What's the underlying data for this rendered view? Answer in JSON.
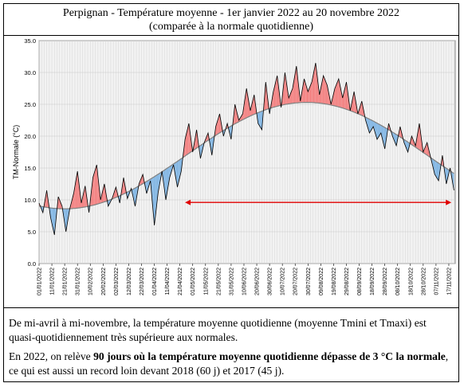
{
  "header": {
    "line1": "Perpignan - Température moyenne - 1er janvier 2022 au 20 novembre 2022",
    "line2": "(comparée à la normale quotidienne)"
  },
  "text": {
    "p1": "De mi-avril à mi-novembre, la température moyenne quotidienne (moyenne Tmini et Tmaxi) est quasi-quotidiennement très supérieure aux normales.",
    "p2_prefix": "En 2022, on relève ",
    "p2_bold": "90 jours où la température moyenne quotidienne dépasse de 3 °C la normale",
    "p2_suffix": ", ce qui est aussi un record loin devant 2018 (60 j) et 2017 (45 j)."
  },
  "chart_data": {
    "type": "area",
    "title": "",
    "xlabel": "",
    "ylabel": "TM-Normale (°C)",
    "ylim": [
      0,
      35
    ],
    "yticks": [
      "0.0",
      "5.0",
      "10.0",
      "15.0",
      "20.0",
      "25.0",
      "30.0",
      "35.0"
    ],
    "xticks": [
      "01/01/2022",
      "11/01/2022",
      "21/01/2022",
      "31/01/2022",
      "10/02/2022",
      "20/02/2022",
      "02/03/2022",
      "12/03/2022",
      "22/03/2022",
      "01/04/2022",
      "11/04/2022",
      "21/04/2022",
      "01/05/2022",
      "11/05/2022",
      "21/05/2022",
      "31/05/2022",
      "10/06/2022",
      "20/06/2022",
      "30/06/2022",
      "10/07/2022",
      "20/07/2022",
      "30/07/2022",
      "09/08/2022",
      "19/08/2022",
      "29/08/2022",
      "08/09/2022",
      "18/09/2022",
      "28/09/2022",
      "08/10/2022",
      "18/10/2022",
      "28/10/2022",
      "07/11/2022",
      "17/11/2022"
    ],
    "grid": true,
    "colors": {
      "above": "#f47f7f",
      "below": "#7fb5e4",
      "line": "#000000",
      "normal": "#808080",
      "arrow": "#e00000",
      "background": "#f2f2f2"
    },
    "annotation": {
      "type": "arrow",
      "direction": "both",
      "from_day": 114,
      "to_day": 322,
      "y": 9.6
    },
    "series": [
      {
        "name": "",
        "x_days_from_2022_01_01": [
          0,
          3,
          6,
          9,
          12,
          15,
          18,
          21,
          24,
          27,
          30,
          33,
          36,
          39,
          42,
          45,
          48,
          51,
          54,
          57,
          60,
          63,
          66,
          69,
          72,
          75,
          78,
          81,
          84,
          87,
          90,
          93,
          96,
          99,
          102,
          105,
          108,
          111,
          114,
          117,
          120,
          123,
          126,
          129,
          132,
          135,
          138,
          141,
          144,
          147,
          150,
          153,
          156,
          159,
          162,
          165,
          168,
          171,
          174,
          177,
          180,
          183,
          186,
          189,
          192,
          195,
          198,
          201,
          204,
          207,
          210,
          213,
          216,
          219,
          222,
          225,
          228,
          231,
          234,
          237,
          240,
          243,
          246,
          249,
          252,
          255,
          258,
          261,
          264,
          267,
          270,
          273,
          276,
          279,
          282,
          285,
          288,
          291,
          294,
          297,
          300,
          303,
          306,
          309,
          312,
          315,
          318,
          321,
          324
        ],
        "values": [
          9.5,
          8.0,
          11.5,
          7.2,
          4.5,
          10.5,
          9.0,
          5.0,
          8.6,
          11.0,
          14.5,
          9.5,
          12.2,
          8.0,
          13.5,
          15.5,
          10.0,
          12.5,
          9.0,
          10.2,
          12.0,
          9.5,
          13.5,
          10.2,
          11.8,
          9.0,
          12.5,
          14.0,
          11.0,
          13.0,
          6.0,
          11.2,
          14.5,
          10.0,
          13.5,
          15.5,
          12.0,
          14.5,
          19.5,
          22.0,
          17.5,
          21.0,
          16.5,
          19.0,
          20.5,
          17.0,
          21.5,
          23.5,
          20.0,
          22.0,
          19.5,
          25.0,
          22.5,
          23.5,
          27.5,
          24.0,
          26.5,
          22.0,
          21.0,
          28.5,
          23.5,
          27.0,
          29.5,
          24.5,
          30.0,
          26.0,
          27.5,
          31.0,
          25.5,
          29.0,
          27.0,
          28.5,
          31.5,
          26.5,
          29.5,
          28.0,
          25.0,
          27.5,
          29.0,
          26.0,
          28.5,
          24.0,
          27.0,
          23.5,
          25.5,
          22.5,
          20.5,
          21.5,
          19.5,
          20.5,
          18.0,
          22.0,
          20.0,
          18.5,
          21.5,
          19.0,
          17.5,
          20.0,
          18.5,
          22.0,
          17.5,
          19.0,
          16.5,
          14.0,
          13.0,
          17.0,
          12.5,
          15.0,
          11.5
        ]
      }
    ],
    "normal": {
      "name": "",
      "day_of_min": 20,
      "min": 8.6,
      "day_of_max": 209,
      "max": 25.3
    }
  }
}
